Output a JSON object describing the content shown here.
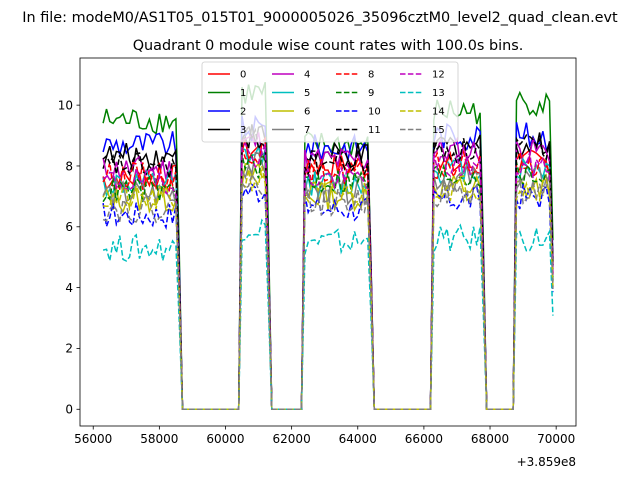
{
  "figure": {
    "suptitle": "In file: modeM0/AS1T05_015T01_9000005026_35096cztM0_level2_quad_clean.evt",
    "offset_label": "+3.859e8"
  },
  "chart_data": {
    "type": "line",
    "title": "Quadrant 0 module wise count rates with 100.0s bins.",
    "xlabel": "",
    "ylabel": "",
    "xlim": [
      55600,
      70600
    ],
    "ylim": [
      -0.55,
      11.55
    ],
    "x_ticks": [
      56000,
      58000,
      60000,
      62000,
      64000,
      66000,
      68000,
      70000
    ],
    "y_ticks": [
      0,
      2,
      4,
      6,
      8,
      10
    ],
    "x_offset": 385900000,
    "grid": false,
    "legend_position": "upper-center",
    "legend_columns": 4,
    "gti_segments": [
      {
        "start": 56300,
        "end": 58600
      },
      {
        "start": 60500,
        "end": 61300
      },
      {
        "start": 62400,
        "end": 64400
      },
      {
        "start": 66300,
        "end": 67800
      },
      {
        "start": 68800,
        "end": 69900
      }
    ],
    "series": [
      {
        "name": "0",
        "color": "#ff0000",
        "dash": "solid",
        "levels": [
          7.6,
          8.5,
          8.0,
          8.0,
          8.1
        ]
      },
      {
        "name": "1",
        "color": "#008000",
        "dash": "solid",
        "levels": [
          9.5,
          10.4,
          8.7,
          9.8,
          10.1
        ]
      },
      {
        "name": "2",
        "color": "#0000ff",
        "dash": "solid",
        "levels": [
          8.7,
          9.2,
          8.6,
          9.0,
          9.0
        ]
      },
      {
        "name": "3",
        "color": "#000000",
        "dash": "solid",
        "levels": [
          8.3,
          9.0,
          8.3,
          8.7,
          8.7
        ]
      },
      {
        "name": "4",
        "color": "#bf00bf",
        "dash": "solid",
        "levels": [
          7.9,
          8.8,
          8.2,
          8.5,
          8.5
        ]
      },
      {
        "name": "5",
        "color": "#00bfbf",
        "dash": "solid",
        "levels": [
          7.4,
          8.3,
          7.4,
          7.9,
          7.9
        ]
      },
      {
        "name": "6",
        "color": "#bfbf00",
        "dash": "solid",
        "levels": [
          6.9,
          7.7,
          7.0,
          7.3,
          7.3
        ]
      },
      {
        "name": "7",
        "color": "#808080",
        "dash": "solid",
        "levels": [
          7.1,
          8.0,
          7.2,
          7.6,
          7.6
        ]
      },
      {
        "name": "8",
        "color": "#ff0000",
        "dash": "dashed",
        "levels": [
          7.7,
          8.5,
          7.8,
          8.0,
          8.1
        ]
      },
      {
        "name": "9",
        "color": "#008000",
        "dash": "dashed",
        "levels": [
          7.2,
          8.0,
          7.5,
          7.7,
          7.7
        ]
      },
      {
        "name": "10",
        "color": "#0000ff",
        "dash": "dashed",
        "levels": [
          6.4,
          7.2,
          6.6,
          6.9,
          7.0
        ]
      },
      {
        "name": "11",
        "color": "#000000",
        "dash": "dashed",
        "levels": [
          8.0,
          8.9,
          8.1,
          8.5,
          8.6
        ]
      },
      {
        "name": "12",
        "color": "#bf00bf",
        "dash": "dashed",
        "levels": [
          7.5,
          8.4,
          7.6,
          8.0,
          8.0
        ]
      },
      {
        "name": "13",
        "color": "#00bfbf",
        "dash": "dashed",
        "levels": [
          5.3,
          6.0,
          5.5,
          5.6,
          5.6
        ]
      },
      {
        "name": "14",
        "color": "#bfbf00",
        "dash": "dashed",
        "levels": [
          6.9,
          7.6,
          7.1,
          7.3,
          7.3
        ]
      },
      {
        "name": "15",
        "color": "#808080",
        "dash": "dashed",
        "levels": [
          6.6,
          7.4,
          6.8,
          7.1,
          7.2
        ]
      }
    ]
  }
}
